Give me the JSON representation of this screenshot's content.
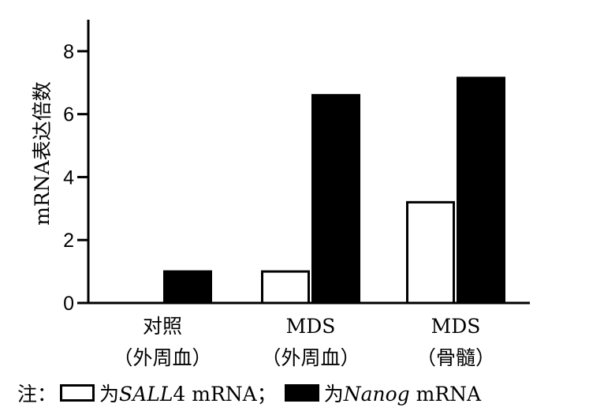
{
  "chart_data": {
    "type": "bar",
    "categories": [
      [
        "对照",
        "（外周血）"
      ],
      [
        "MDS",
        "（外周血）"
      ],
      [
        "MDS",
        "（骨髓）"
      ]
    ],
    "series": [
      {
        "name": "SALL4 mRNA",
        "values": [
          0,
          1.0,
          3.2
        ],
        "fill": "#ffffff",
        "stroke": "#000000"
      },
      {
        "name": "Nanog mRNA",
        "values": [
          1.0,
          6.6,
          7.15
        ],
        "fill": "#000000",
        "stroke": "#000000"
      }
    ],
    "ylabel": "mRNA表达倍数",
    "xlabel": "",
    "ylim": [
      0,
      9
    ],
    "yticks": [
      "0",
      "2",
      "4",
      "6",
      "8"
    ],
    "grid": false,
    "legend_position": "bottom-left"
  },
  "legend": {
    "prefix": "注：",
    "open_text_pre": "为",
    "open_gene": "SALL",
    "open_text_post": "4 mRNA；",
    "solid_text_pre": "为",
    "solid_gene": "Nanog",
    "solid_text_post": " mRNA"
  }
}
